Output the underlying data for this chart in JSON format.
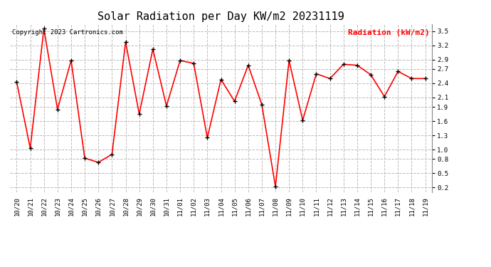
{
  "title": "Solar Radiation per Day KW/m2 20231119",
  "copyright_text": "Copyright 2023 Cartronics.com",
  "legend_label": "Radiation (kW/m2)",
  "dates": [
    "10/20",
    "10/21",
    "10/22",
    "10/23",
    "10/24",
    "10/25",
    "10/26",
    "10/27",
    "10/28",
    "10/29",
    "10/30",
    "10/31",
    "11/01",
    "11/02",
    "11/03",
    "11/04",
    "11/05",
    "11/06",
    "11/07",
    "11/08",
    "11/09",
    "11/10",
    "11/11",
    "11/12",
    "11/13",
    "11/14",
    "11/15",
    "11/16",
    "11/17",
    "11/18",
    "11/19"
  ],
  "values": [
    2.43,
    1.03,
    3.55,
    1.85,
    2.88,
    0.82,
    0.73,
    0.9,
    3.27,
    1.75,
    3.12,
    1.92,
    2.88,
    2.82,
    1.25,
    2.48,
    2.02,
    2.78,
    1.95,
    0.22,
    2.88,
    1.62,
    2.6,
    2.5,
    2.8,
    2.78,
    2.58,
    2.12,
    2.65,
    2.5,
    2.5
  ],
  "line_color": "red",
  "marker_color": "black",
  "marker_style": "+",
  "marker_size": 4,
  "marker_linewidth": 1.0,
  "line_width": 1.2,
  "grid_color": "#bbbbbb",
  "grid_style": "--",
  "background_color": "white",
  "ylim": [
    0.1,
    3.65
  ],
  "yticks": [
    0.2,
    0.5,
    0.8,
    1.0,
    1.3,
    1.6,
    1.9,
    2.1,
    2.4,
    2.7,
    2.9,
    3.2,
    3.5
  ],
  "title_fontsize": 11,
  "copyright_fontsize": 6.5,
  "legend_fontsize": 8,
  "tick_fontsize": 6.5
}
